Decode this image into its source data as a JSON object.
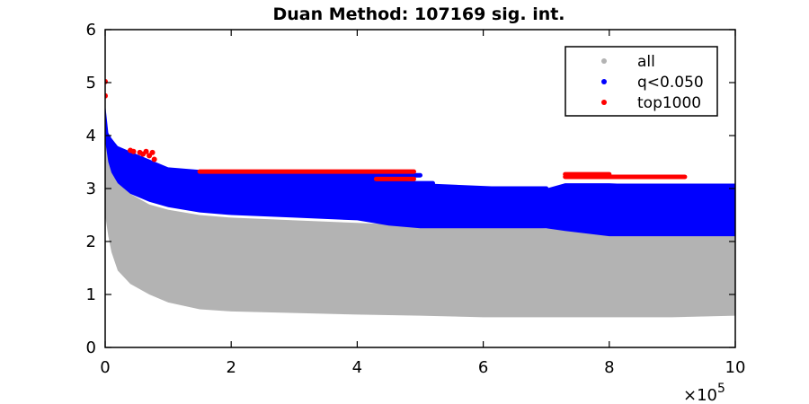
{
  "chart_data": {
    "type": "scatter",
    "title": "Duan Method: 107169 sig. int.",
    "xlabel": "",
    "ylabel": "",
    "xlim": [
      0,
      1000000
    ],
    "ylim": [
      0,
      6
    ],
    "x_ticks": [
      0,
      200000,
      400000,
      600000,
      800000,
      1000000
    ],
    "x_tick_labels": [
      "0",
      "2",
      "4",
      "6",
      "8",
      "10"
    ],
    "x_multiplier_label": "×10",
    "x_multiplier_exponent": "5",
    "y_ticks": [
      0,
      1,
      2,
      3,
      4,
      5,
      6
    ],
    "y_tick_labels": [
      "0",
      "1",
      "2",
      "3",
      "4",
      "5",
      "6"
    ],
    "grid": false,
    "legend_position": "top-right",
    "colors": {
      "all": "#b3b3b3",
      "q": "#0000ff",
      "top": "#ff0000"
    },
    "series": [
      {
        "name": "all",
        "band": {
          "x": [
            0,
            5000,
            10000,
            20000,
            40000,
            70000,
            100000,
            150000,
            200000,
            300000,
            400000,
            500000,
            600000,
            700000,
            800000,
            900000,
            1000000
          ],
          "upper": [
            4.2,
            3.8,
            3.5,
            3.2,
            2.9,
            2.7,
            2.6,
            2.5,
            2.45,
            2.4,
            2.35,
            2.3,
            2.3,
            2.25,
            2.2,
            2.2,
            2.2
          ],
          "lower": [
            2.5,
            2.1,
            1.8,
            1.45,
            1.2,
            1.0,
            0.85,
            0.72,
            0.68,
            0.65,
            0.62,
            0.6,
            0.57,
            0.57,
            0.57,
            0.57,
            0.6
          ]
        }
      },
      {
        "name": "q<0.050",
        "band": {
          "x": [
            0,
            5000,
            10000,
            20000,
            40000,
            70000,
            100000,
            150000,
            200000,
            300000,
            400000,
            450000,
            500000,
            600000,
            700000,
            730000,
            800000,
            900000,
            1000000
          ],
          "upper": [
            4.6,
            4.05,
            3.95,
            3.8,
            3.7,
            3.55,
            3.4,
            3.35,
            3.3,
            3.3,
            3.3,
            3.2,
            3.1,
            3.05,
            3.0,
            3.1,
            3.1,
            3.05,
            3.05
          ],
          "lower": [
            3.9,
            3.5,
            3.3,
            3.1,
            2.9,
            2.75,
            2.65,
            2.55,
            2.5,
            2.45,
            2.4,
            2.3,
            2.25,
            2.25,
            2.25,
            2.2,
            2.1,
            2.1,
            2.1
          ]
        },
        "streaks": [
          {
            "x": [
              100000,
              500000
            ],
            "y": 3.25
          },
          {
            "x": [
              120000,
              520000
            ],
            "y": 3.1
          },
          {
            "x": [
              150000,
              700000
            ],
            "y": 3.0
          },
          {
            "x": [
              730000,
              1000000
            ],
            "y": 3.05
          }
        ]
      },
      {
        "name": "top1000",
        "points": [
          {
            "x": 0,
            "y": 5.02
          },
          {
            "x": 0,
            "y": 4.75
          },
          {
            "x": 40000,
            "y": 3.72
          },
          {
            "x": 45000,
            "y": 3.7
          },
          {
            "x": 55000,
            "y": 3.68
          },
          {
            "x": 60000,
            "y": 3.65
          },
          {
            "x": 65000,
            "y": 3.7
          },
          {
            "x": 70000,
            "y": 3.62
          },
          {
            "x": 75000,
            "y": 3.68
          },
          {
            "x": 78000,
            "y": 3.55
          }
        ],
        "streaks": [
          {
            "x": [
              150000,
              490000
            ],
            "y": 3.32
          },
          {
            "x": [
              430000,
              490000
            ],
            "y": 3.18
          },
          {
            "x": [
              730000,
              800000
            ],
            "y": 3.27
          },
          {
            "x": [
              730000,
              920000
            ],
            "y": 3.22
          }
        ]
      }
    ]
  }
}
